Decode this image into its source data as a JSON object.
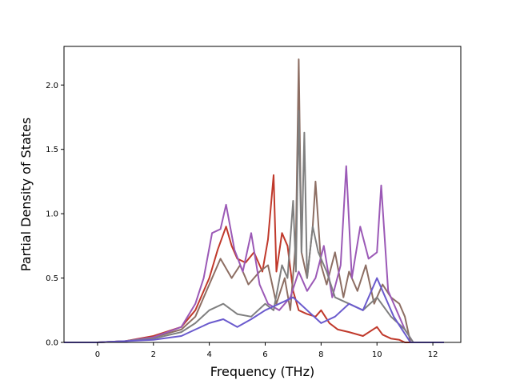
{
  "chart_data": {
    "type": "line",
    "title": "",
    "xlabel": "Frequency (THz)",
    "ylabel": "Partial Density of States",
    "xlim": [
      -1.2,
      13.0
    ],
    "ylim": [
      0.0,
      2.3
    ],
    "xticks": [
      0,
      2,
      4,
      6,
      8,
      10,
      12
    ],
    "yticks": [
      0.0,
      0.5,
      1.0,
      1.5,
      2.0
    ],
    "xtick_labels": [
      "0",
      "2",
      "4",
      "6",
      "8",
      "10",
      "12"
    ],
    "ytick_labels": [
      "0.0",
      "0.5",
      "1.0",
      "1.5",
      "2.0"
    ],
    "grid": false,
    "legend": "none",
    "series": [
      {
        "color": "#c0392b",
        "x": [
          -1.2,
          0,
          1,
          2,
          3,
          3.5,
          4,
          4.3,
          4.6,
          4.8,
          5.0,
          5.3,
          5.6,
          5.9,
          6.1,
          6.3,
          6.4,
          6.6,
          6.8,
          7.0,
          7.2,
          7.5,
          7.8,
          8.0,
          8.3,
          8.6,
          9.0,
          9.5,
          10.0,
          10.2,
          10.5,
          10.8,
          11.0,
          11.3,
          12.4
        ],
        "y": [
          0,
          0,
          0.01,
          0.05,
          0.12,
          0.25,
          0.5,
          0.72,
          0.9,
          0.75,
          0.65,
          0.62,
          0.7,
          0.55,
          0.8,
          1.3,
          0.55,
          0.85,
          0.75,
          0.4,
          0.25,
          0.22,
          0.2,
          0.25,
          0.15,
          0.1,
          0.08,
          0.05,
          0.12,
          0.06,
          0.03,
          0.02,
          0.0,
          0.0,
          0.0
        ]
      },
      {
        "color": "#8d6e63",
        "x": [
          -1.2,
          0,
          1,
          2,
          3,
          3.5,
          4,
          4.4,
          4.8,
          5.1,
          5.4,
          5.8,
          6.1,
          6.4,
          6.7,
          6.9,
          7.1,
          7.2,
          7.3,
          7.5,
          7.7,
          7.8,
          8.0,
          8.2,
          8.5,
          8.8,
          9.0,
          9.3,
          9.6,
          9.9,
          10.2,
          10.5,
          10.8,
          11.0,
          11.2,
          12.4
        ],
        "y": [
          0,
          0,
          0.01,
          0.04,
          0.1,
          0.2,
          0.45,
          0.65,
          0.5,
          0.6,
          0.45,
          0.55,
          0.6,
          0.3,
          0.5,
          0.25,
          0.8,
          2.2,
          0.7,
          0.5,
          0.9,
          1.25,
          0.6,
          0.45,
          0.7,
          0.35,
          0.55,
          0.4,
          0.6,
          0.3,
          0.45,
          0.35,
          0.3,
          0.2,
          0.0,
          0.0
        ]
      },
      {
        "color": "#9b59b6",
        "x": [
          -1.2,
          0,
          1,
          2,
          3,
          3.5,
          3.8,
          4.1,
          4.4,
          4.6,
          4.9,
          5.2,
          5.5,
          5.8,
          6.1,
          6.5,
          6.9,
          7.2,
          7.5,
          7.8,
          8.1,
          8.4,
          8.7,
          8.9,
          9.1,
          9.4,
          9.7,
          10.0,
          10.15,
          10.4,
          10.7,
          11.0,
          11.3,
          12.4
        ],
        "y": [
          0,
          0,
          0.01,
          0.04,
          0.12,
          0.3,
          0.5,
          0.85,
          0.88,
          1.07,
          0.72,
          0.55,
          0.85,
          0.45,
          0.3,
          0.25,
          0.35,
          0.55,
          0.4,
          0.5,
          0.75,
          0.35,
          0.6,
          1.37,
          0.5,
          0.9,
          0.65,
          0.7,
          1.22,
          0.4,
          0.25,
          0.1,
          0.0,
          0.0
        ]
      },
      {
        "color": "#7f7f7f",
        "x": [
          -1.2,
          0,
          1,
          2,
          3,
          3.5,
          4,
          4.5,
          5.0,
          5.5,
          6.0,
          6.3,
          6.6,
          6.8,
          7.0,
          7.1,
          7.2,
          7.3,
          7.4,
          7.5,
          7.7,
          7.9,
          8.2,
          8.5,
          9.0,
          9.5,
          10.0,
          10.5,
          11.0,
          11.3,
          12.4
        ],
        "y": [
          0,
          0,
          0.01,
          0.03,
          0.08,
          0.15,
          0.25,
          0.3,
          0.22,
          0.2,
          0.3,
          0.25,
          0.6,
          0.5,
          1.1,
          0.55,
          1.8,
          0.7,
          1.63,
          0.5,
          0.9,
          0.7,
          0.55,
          0.35,
          0.3,
          0.25,
          0.35,
          0.2,
          0.1,
          0.0,
          0.0
        ]
      },
      {
        "color": "#6a5acd",
        "x": [
          -1.2,
          0,
          1,
          2,
          3,
          3.5,
          4,
          4.5,
          5.0,
          5.5,
          6.0,
          6.5,
          7.0,
          7.5,
          8.0,
          8.5,
          9.0,
          9.5,
          10.0,
          10.3,
          10.6,
          10.9,
          11.2,
          12.4
        ],
        "y": [
          0,
          0,
          0.01,
          0.02,
          0.05,
          0.1,
          0.15,
          0.18,
          0.12,
          0.18,
          0.25,
          0.3,
          0.35,
          0.25,
          0.15,
          0.2,
          0.3,
          0.25,
          0.5,
          0.35,
          0.2,
          0.1,
          0.0,
          0.0
        ]
      }
    ]
  }
}
